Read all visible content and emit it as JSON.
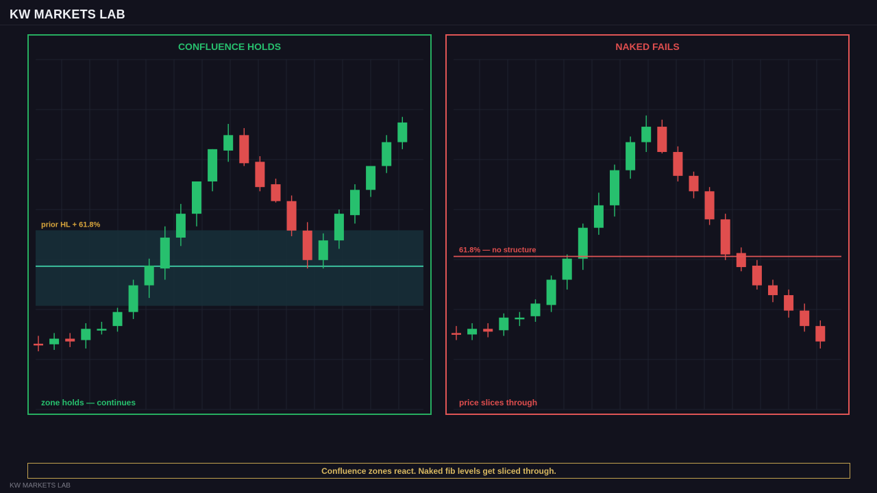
{
  "header": {
    "brand": "KW MARKETS LAB"
  },
  "footer": {
    "note": "Confluence zones react. Naked fib levels get sliced through.",
    "watermark": "KW MARKETS LAB"
  },
  "colors": {
    "up": "#27c06e",
    "down": "#e04e4e",
    "left_frame": "#27ae60",
    "right_frame": "#e05555",
    "zone_fill": "#17303a",
    "zone_line": "#3ec9a4",
    "fib_line": "#e05555",
    "zone_label": "#d8a53c",
    "grid": "#1f2230"
  },
  "chart_data": [
    {
      "type": "candlestick",
      "title": "CONFLUENCE HOLDS",
      "ylim": [
        0,
        100
      ],
      "grid": true,
      "zone": {
        "from": 25.7,
        "to": 52.6,
        "mid": 39.8,
        "label": "prior HL + 61.8%"
      },
      "annotation": "zone holds — continues",
      "candles": [
        {
          "o": 12.2,
          "h": 15.0,
          "l": 9.5,
          "c": 11.8
        },
        {
          "o": 12.0,
          "h": 16.0,
          "l": 10.0,
          "c": 14.0
        },
        {
          "o": 14.0,
          "h": 16.0,
          "l": 11.0,
          "c": 13.0
        },
        {
          "o": 13.5,
          "h": 19.5,
          "l": 10.5,
          "c": 17.5
        },
        {
          "o": 17.0,
          "h": 20.0,
          "l": 15.5,
          "c": 17.5
        },
        {
          "o": 18.5,
          "h": 25.0,
          "l": 16.5,
          "c": 23.5
        },
        {
          "o": 23.5,
          "h": 35.0,
          "l": 21.0,
          "c": 33.0
        },
        {
          "o": 33.0,
          "h": 42.5,
          "l": 28.5,
          "c": 40.0
        },
        {
          "o": 39.0,
          "h": 54.0,
          "l": 35.0,
          "c": 50.0
        },
        {
          "o": 50.0,
          "h": 62.0,
          "l": 47.0,
          "c": 58.5
        },
        {
          "o": 58.5,
          "h": 70.0,
          "l": 54.0,
          "c": 70.0
        },
        {
          "o": 70.0,
          "h": 81.5,
          "l": 66.5,
          "c": 81.5
        },
        {
          "o": 81.0,
          "h": 90.5,
          "l": 77.0,
          "c": 86.5
        },
        {
          "o": 86.5,
          "h": 89.0,
          "l": 75.5,
          "c": 76.5
        },
        {
          "o": 77.0,
          "h": 79.0,
          "l": 66.5,
          "c": 68.0
        },
        {
          "o": 69.0,
          "h": 71.0,
          "l": 62.5,
          "c": 63.0
        },
        {
          "o": 63.0,
          "h": 65.0,
          "l": 50.5,
          "c": 52.5
        },
        {
          "o": 52.5,
          "h": 55.5,
          "l": 39.0,
          "c": 42.0
        },
        {
          "o": 42.0,
          "h": 51.5,
          "l": 39.0,
          "c": 49.0
        },
        {
          "o": 49.0,
          "h": 60.0,
          "l": 46.0,
          "c": 58.5
        },
        {
          "o": 58.0,
          "h": 69.0,
          "l": 55.0,
          "c": 67.0
        },
        {
          "o": 67.0,
          "h": 75.5,
          "l": 64.5,
          "c": 75.5
        },
        {
          "o": 75.5,
          "h": 86.5,
          "l": 73.0,
          "c": 84.0
        },
        {
          "o": 84.0,
          "h": 93.0,
          "l": 81.5,
          "c": 91.0
        }
      ]
    },
    {
      "type": "candlestick",
      "title": "NAKED FAILS",
      "ylim": [
        0,
        100
      ],
      "grid": true,
      "level": {
        "value": 43.3,
        "label": "61.8% — no structure"
      },
      "annotation": "price slices through",
      "candles": [
        {
          "o": 16.0,
          "h": 18.5,
          "l": 13.5,
          "c": 15.5
        },
        {
          "o": 15.5,
          "h": 19.5,
          "l": 13.5,
          "c": 17.5
        },
        {
          "o": 17.5,
          "h": 19.5,
          "l": 14.5,
          "c": 16.5
        },
        {
          "o": 17.0,
          "h": 23.0,
          "l": 15.0,
          "c": 21.5
        },
        {
          "o": 21.0,
          "h": 23.5,
          "l": 18.5,
          "c": 21.5
        },
        {
          "o": 22.0,
          "h": 28.0,
          "l": 20.0,
          "c": 26.5
        },
        {
          "o": 26.0,
          "h": 36.5,
          "l": 23.5,
          "c": 35.0
        },
        {
          "o": 35.0,
          "h": 44.0,
          "l": 31.5,
          "c": 42.5
        },
        {
          "o": 42.5,
          "h": 55.0,
          "l": 38.5,
          "c": 53.5
        },
        {
          "o": 53.5,
          "h": 66.0,
          "l": 51.0,
          "c": 61.5
        },
        {
          "o": 61.5,
          "h": 76.0,
          "l": 57.5,
          "c": 74.0
        },
        {
          "o": 74.0,
          "h": 86.0,
          "l": 71.0,
          "c": 84.0
        },
        {
          "o": 84.0,
          "h": 93.5,
          "l": 80.5,
          "c": 89.5
        },
        {
          "o": 89.5,
          "h": 92.0,
          "l": 80.0,
          "c": 80.5
        },
        {
          "o": 80.5,
          "h": 82.5,
          "l": 70.0,
          "c": 72.0
        },
        {
          "o": 72.0,
          "h": 73.5,
          "l": 64.0,
          "c": 66.5
        },
        {
          "o": 66.5,
          "h": 68.0,
          "l": 54.5,
          "c": 56.5
        },
        {
          "o": 56.5,
          "h": 58.5,
          "l": 42.0,
          "c": 44.0
        },
        {
          "o": 44.5,
          "h": 46.5,
          "l": 38.0,
          "c": 39.5
        },
        {
          "o": 40.0,
          "h": 42.0,
          "l": 31.5,
          "c": 33.0
        },
        {
          "o": 33.0,
          "h": 35.0,
          "l": 27.0,
          "c": 29.5
        },
        {
          "o": 29.5,
          "h": 31.5,
          "l": 21.5,
          "c": 24.0
        },
        {
          "o": 24.0,
          "h": 26.5,
          "l": 16.5,
          "c": 18.5
        },
        {
          "o": 18.5,
          "h": 20.5,
          "l": 10.5,
          "c": 13.0
        }
      ]
    }
  ]
}
